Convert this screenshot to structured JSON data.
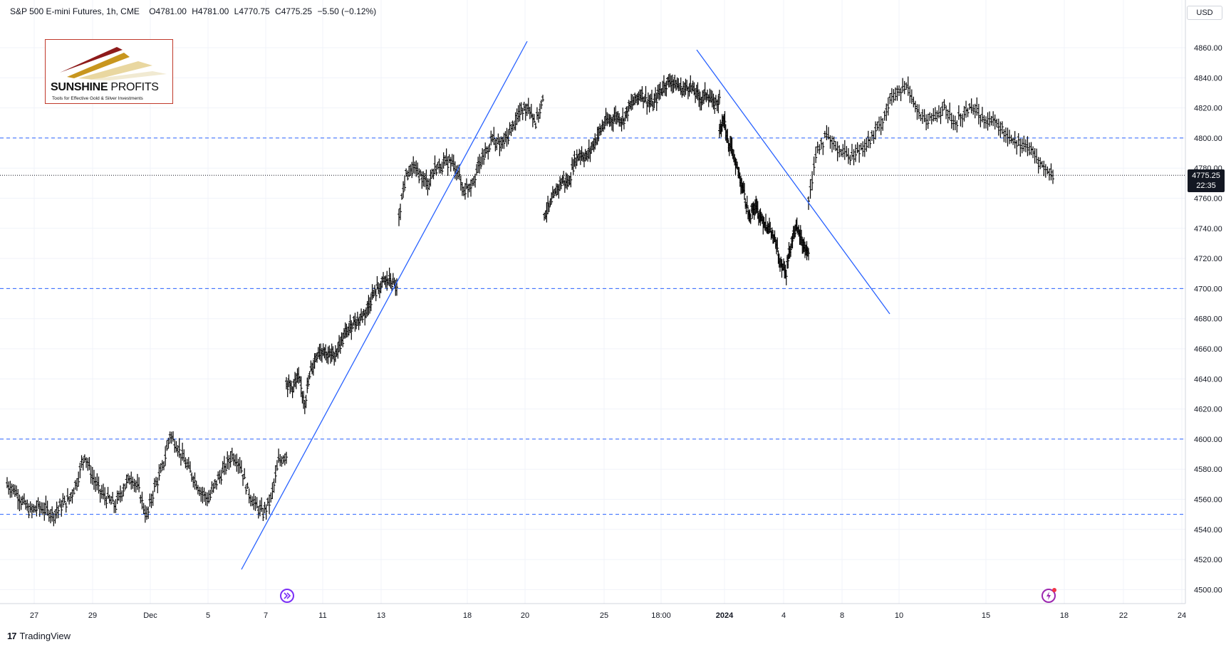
{
  "header": {
    "symbol": "S&P 500 E-mini Futures, 1h, CME",
    "open": "O4781.00",
    "high": "H4781.00",
    "low": "L4770.75",
    "close": "C4775.25",
    "change": "−5.50 (−0.12%)"
  },
  "currency": "USD",
  "last_price": "4775.25",
  "countdown": "22:35",
  "logo": {
    "name_bold": "SUNSHINE",
    "name_rest": " PROFITS",
    "tagline": "Tools for Effective Gold & Silver Investments"
  },
  "brand": "TradingView",
  "colors": {
    "line": "#2962ff",
    "candle": "#000000",
    "grid": "#f0f3fa",
    "last_price_bg": "#131722"
  },
  "chart_data": {
    "type": "line",
    "title": "S&P 500 E-mini Futures, 1h, CME",
    "ylim": [
      4490,
      4870
    ],
    "y_ticks": [
      4500,
      4520,
      4540,
      4560,
      4580,
      4600,
      4620,
      4640,
      4660,
      4680,
      4700,
      4720,
      4740,
      4760,
      4780,
      4800,
      4820,
      4840,
      4860
    ],
    "y_tick_labels": [
      "4500.00",
      "4520.00",
      "4540.00",
      "4560.00",
      "4580.00",
      "4600.00",
      "4620.00",
      "4640.00",
      "4660.00",
      "4680.00",
      "4700.00",
      "4720.00",
      "4740.00",
      "4760.00",
      "4780.00",
      "4800.00",
      "4820.00",
      "4840.00",
      "4860.00"
    ],
    "x_ticks": [
      "27",
      "29",
      "Dec",
      "5",
      "7",
      "11",
      "13",
      "18",
      "20",
      "25",
      "18:00",
      "2024",
      "4",
      "8",
      "10",
      "15",
      "18",
      "22",
      "24"
    ],
    "x_ticks_bold": [
      "2024"
    ],
    "grid": true,
    "horizontal_levels": [
      4800,
      4700,
      4600,
      4550
    ],
    "last_price": 4775.25,
    "series": [
      {
        "values": [
          4570,
          4566,
          4558,
          4552,
          4555,
          4553,
          4550,
          4556,
          4560,
          4572,
          4590,
          4575,
          4565,
          4560,
          4556,
          4568,
          4575,
          4566,
          4548,
          4568,
          4580,
          4603,
          4595,
          4584,
          4575,
          4565,
          4560,
          4572,
          4580,
          4590,
          4584,
          4566,
          4556,
          4551,
          4560,
          4585,
          4590,
          4637,
          4635,
          4640,
          4625,
          4645,
          4657,
          4660,
          4655,
          4657,
          4665,
          4672,
          4678,
          4680,
          4685,
          4695,
          4700,
          4705,
          4705,
          4700,
          4750,
          4775,
          4780,
          4775,
          4770,
          4780,
          4782,
          4785,
          4780,
          4765,
          4770,
          4780,
          4790,
          4800,
          4795,
          4800,
          4810,
          4818,
          4822,
          4810,
          4825,
          4750,
          4755,
          4765,
          4772,
          4770,
          4785,
          4790,
          4787,
          4795,
          4803,
          4810,
          4812,
          4815,
          4812,
          4820,
          4825,
          4830,
          4825,
          4822,
          4830,
          4836,
          4838,
          4835,
          4832,
          4835,
          4830,
          4826,
          4830,
          4822,
          4826,
          4805,
          4815,
          4795,
          4790,
          4780,
          4770,
          4755,
          4750,
          4755,
          4748,
          4745,
          4740,
          4735,
          4725,
          4716,
          4712,
          4730,
          4740,
          4735,
          4728,
          4724,
          4760,
          4795,
          4800,
          4795,
          4790,
          4788,
          4795,
          4800,
          4810,
          4825,
          4830,
          4835,
          4818,
          4810,
          4815,
          4820,
          4810,
          4815,
          4822,
          4815,
          4812,
          4808,
          4802,
          4798,
          4795,
          4788,
          4780,
          4775
        ]
      }
    ],
    "trendlines": [
      {
        "from": {
          "x": "Dec 6",
          "y": 4510
        },
        "to": {
          "x": "Dec 20",
          "y": 4865
        }
      },
      {
        "from": {
          "x": "Dec 28",
          "y": 4860
        },
        "to": {
          "x": "Jan 9",
          "y": 4682
        }
      }
    ]
  }
}
